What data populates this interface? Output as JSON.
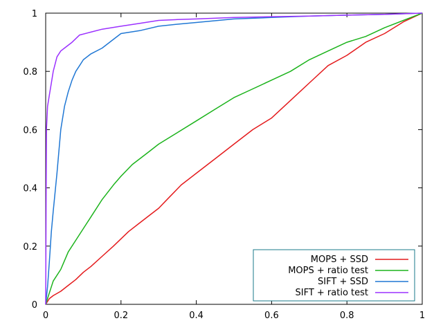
{
  "chart_data": {
    "type": "line",
    "title": "",
    "xlabel": "",
    "ylabel": "",
    "xlim": [
      0,
      1
    ],
    "ylim": [
      0,
      1
    ],
    "xticks": [
      "0",
      "0.2",
      "0.4",
      "0.6",
      "0.8",
      "1"
    ],
    "yticks": [
      "0",
      "0.2",
      "0.4",
      "0.6",
      "0.8",
      "1"
    ],
    "grid": false,
    "legend_position": "bottom-right",
    "series": [
      {
        "name": "MOPS + SSD",
        "color": "#e41a1c",
        "points": [
          [
            0,
            0
          ],
          [
            0.01,
            0.02
          ],
          [
            0.02,
            0.03
          ],
          [
            0.04,
            0.045
          ],
          [
            0.06,
            0.065
          ],
          [
            0.08,
            0.085
          ],
          [
            0.1,
            0.11
          ],
          [
            0.12,
            0.13
          ],
          [
            0.15,
            0.165
          ],
          [
            0.18,
            0.2
          ],
          [
            0.2,
            0.225
          ],
          [
            0.22,
            0.25
          ],
          [
            0.25,
            0.28
          ],
          [
            0.28,
            0.31
          ],
          [
            0.3,
            0.33
          ],
          [
            0.33,
            0.37
          ],
          [
            0.36,
            0.41
          ],
          [
            0.4,
            0.45
          ],
          [
            0.45,
            0.5
          ],
          [
            0.5,
            0.55
          ],
          [
            0.55,
            0.6
          ],
          [
            0.6,
            0.64
          ],
          [
            0.65,
            0.7
          ],
          [
            0.7,
            0.76
          ],
          [
            0.75,
            0.82
          ],
          [
            0.8,
            0.855
          ],
          [
            0.85,
            0.9
          ],
          [
            0.9,
            0.93
          ],
          [
            0.95,
            0.97
          ],
          [
            1,
            1
          ]
        ]
      },
      {
        "name": "MOPS + ratio test",
        "color": "#1bb31b",
        "points": [
          [
            0,
            0
          ],
          [
            0.01,
            0.04
          ],
          [
            0.02,
            0.08
          ],
          [
            0.04,
            0.12
          ],
          [
            0.06,
            0.18
          ],
          [
            0.08,
            0.22
          ],
          [
            0.1,
            0.26
          ],
          [
            0.12,
            0.3
          ],
          [
            0.15,
            0.36
          ],
          [
            0.18,
            0.41
          ],
          [
            0.2,
            0.44
          ],
          [
            0.23,
            0.48
          ],
          [
            0.27,
            0.52
          ],
          [
            0.3,
            0.55
          ],
          [
            0.35,
            0.59
          ],
          [
            0.4,
            0.63
          ],
          [
            0.45,
            0.67
          ],
          [
            0.5,
            0.71
          ],
          [
            0.55,
            0.74
          ],
          [
            0.6,
            0.77
          ],
          [
            0.65,
            0.8
          ],
          [
            0.7,
            0.84
          ],
          [
            0.75,
            0.87
          ],
          [
            0.8,
            0.9
          ],
          [
            0.85,
            0.92
          ],
          [
            0.9,
            0.95
          ],
          [
            0.95,
            0.975
          ],
          [
            1,
            1
          ]
        ]
      },
      {
        "name": "SIFT + SSD",
        "color": "#1f77d4",
        "points": [
          [
            0,
            0
          ],
          [
            0.005,
            0.06
          ],
          [
            0.01,
            0.15
          ],
          [
            0.015,
            0.25
          ],
          [
            0.02,
            0.32
          ],
          [
            0.03,
            0.45
          ],
          [
            0.04,
            0.6
          ],
          [
            0.05,
            0.68
          ],
          [
            0.06,
            0.73
          ],
          [
            0.07,
            0.77
          ],
          [
            0.08,
            0.8
          ],
          [
            0.09,
            0.82
          ],
          [
            0.1,
            0.84
          ],
          [
            0.12,
            0.86
          ],
          [
            0.15,
            0.88
          ],
          [
            0.18,
            0.91
          ],
          [
            0.2,
            0.93
          ],
          [
            0.25,
            0.94
          ],
          [
            0.3,
            0.955
          ],
          [
            0.35,
            0.962
          ],
          [
            0.4,
            0.968
          ],
          [
            0.5,
            0.98
          ],
          [
            0.6,
            0.985
          ],
          [
            0.7,
            0.99
          ],
          [
            0.8,
            0.993
          ],
          [
            0.9,
            0.996
          ],
          [
            1,
            1
          ]
        ]
      },
      {
        "name": "SIFT + ratio test",
        "color": "#9b30ff",
        "points": [
          [
            0,
            0
          ],
          [
            0.002,
            0.6
          ],
          [
            0.005,
            0.68
          ],
          [
            0.01,
            0.72
          ],
          [
            0.015,
            0.76
          ],
          [
            0.02,
            0.8
          ],
          [
            0.03,
            0.85
          ],
          [
            0.04,
            0.87
          ],
          [
            0.05,
            0.88
          ],
          [
            0.07,
            0.9
          ],
          [
            0.09,
            0.925
          ],
          [
            0.12,
            0.935
          ],
          [
            0.15,
            0.945
          ],
          [
            0.2,
            0.955
          ],
          [
            0.25,
            0.965
          ],
          [
            0.3,
            0.975
          ],
          [
            0.35,
            0.978
          ],
          [
            0.4,
            0.98
          ],
          [
            0.5,
            0.985
          ],
          [
            0.6,
            0.988
          ],
          [
            0.7,
            0.99
          ],
          [
            0.8,
            0.993
          ],
          [
            0.9,
            0.996
          ],
          [
            1,
            1
          ]
        ]
      }
    ]
  }
}
